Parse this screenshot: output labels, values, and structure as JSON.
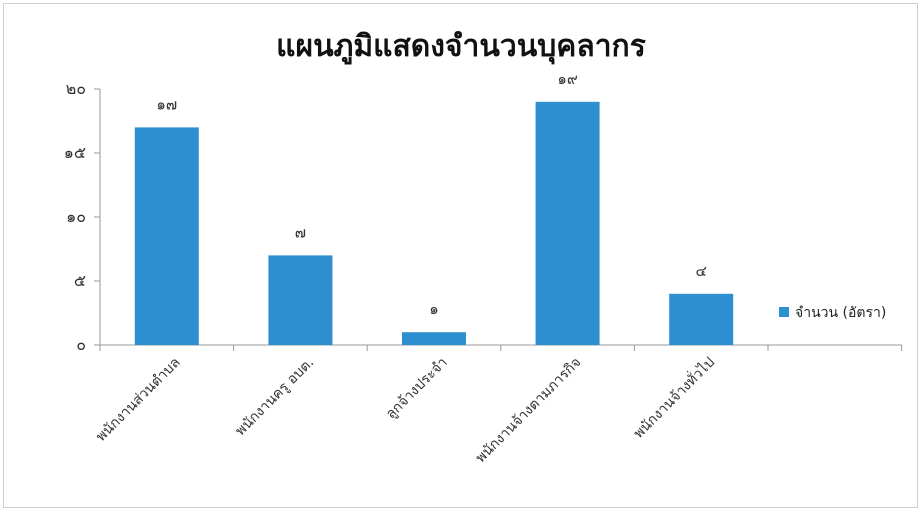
{
  "chart_data": {
    "type": "bar",
    "title": "แผนภูมิแสดงจำนวนบุคลากร",
    "xlabel": "",
    "ylabel": "",
    "categories": [
      "พนักงานส่วนตำบล",
      "พนักงานครู อบต.",
      "ลูกจ้างประจำ",
      "พนักงานจ้างตามภารกิจ",
      "พนักงานจ้างทั่วไป"
    ],
    "series": [
      {
        "name": "จำนวน (อัตรา)",
        "values": [
          17,
          7,
          1,
          19,
          4
        ],
        "color": "#2e8fd0"
      }
    ],
    "data_labels": [
      "๑๗",
      "๗",
      "๑",
      "๑๙",
      "๔"
    ],
    "ylim": [
      0,
      20
    ],
    "y_ticks": [
      0,
      5,
      10,
      15,
      20
    ],
    "y_tick_labels": [
      "๐",
      "๕",
      "๑๐",
      "๑๕",
      "๒๐"
    ],
    "grid": false,
    "legend_position": "right"
  }
}
